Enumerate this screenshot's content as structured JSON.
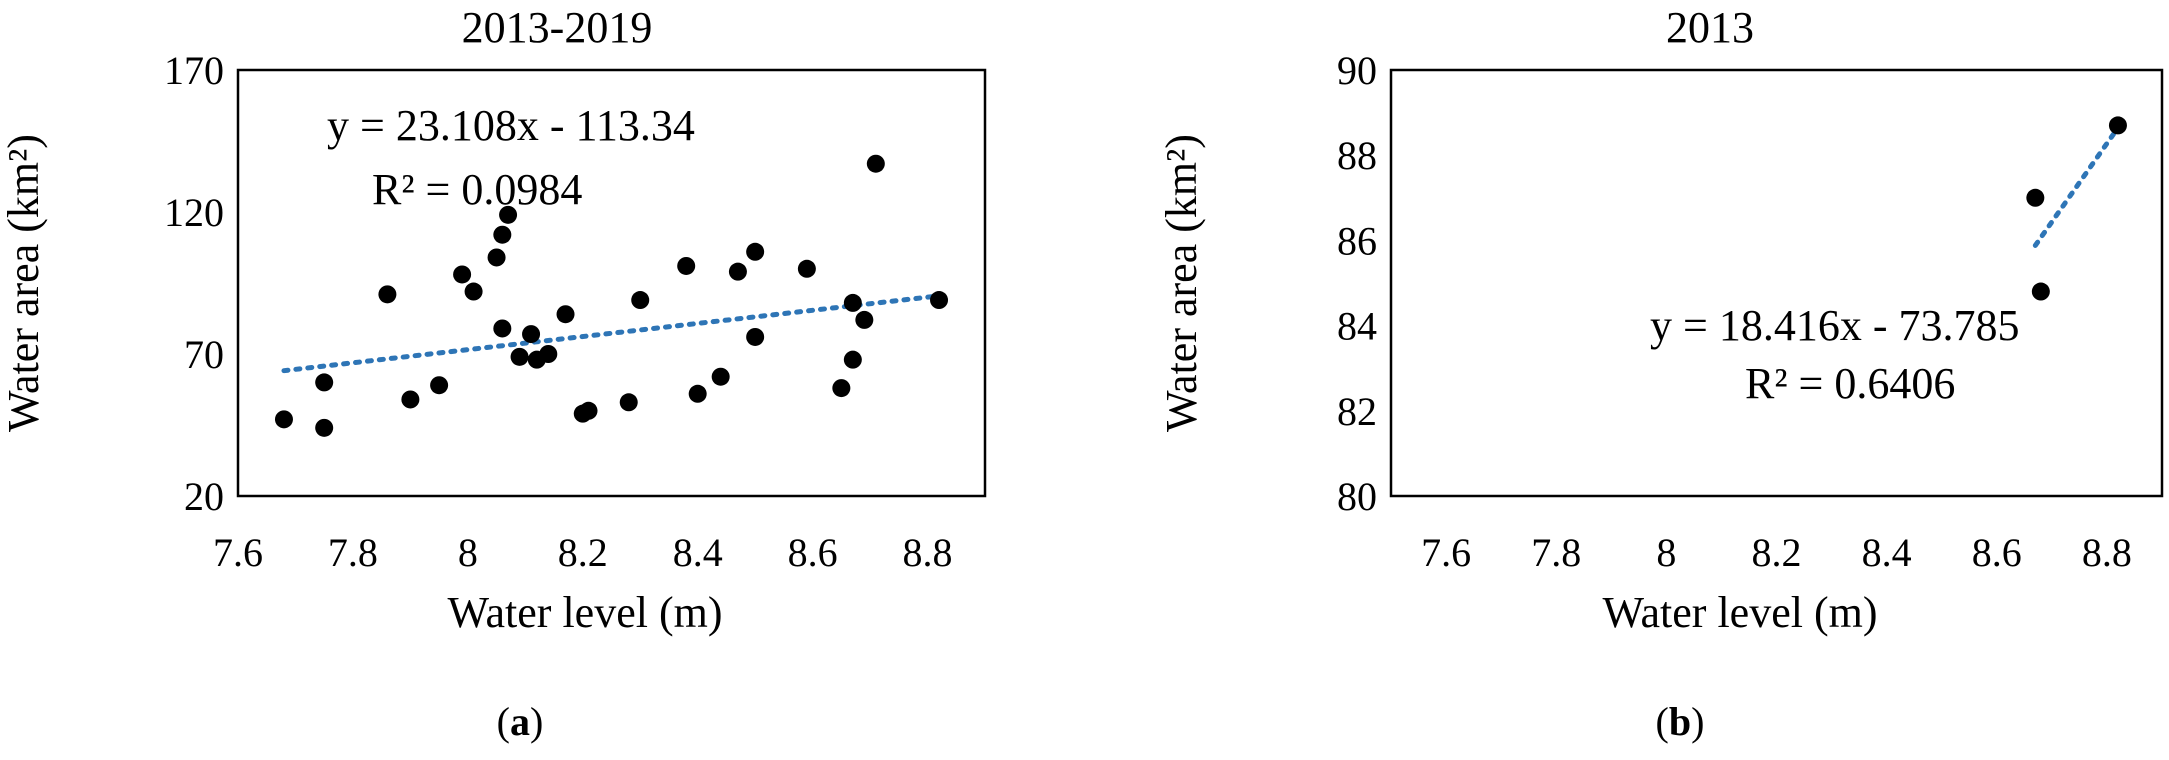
{
  "chart_data": [
    {
      "type": "scatter",
      "panel_label_open": "(",
      "panel_label_letter": "a",
      "panel_label_close": ")",
      "title": "2013-2019",
      "xlabel": "Water level (m)",
      "ylabel": "Water area (km²)",
      "xlim": [
        7.6,
        8.9
      ],
      "ylim": [
        20,
        170
      ],
      "xticks": [
        "7.6",
        "7.8",
        "8",
        "8.2",
        "8.4",
        "8.6",
        "8.8"
      ],
      "yticks": [
        "20",
        "70",
        "120",
        "170"
      ],
      "grid": false,
      "marker_color": "#000000",
      "trendline_color": "#2e75b6",
      "trendline": {
        "type": "linear",
        "slope": 23.108,
        "intercept": -113.34,
        "x_range": [
          7.68,
          8.82
        ]
      },
      "equation": "y = 23.108x - 113.34",
      "r_squared": "R² = 0.0984",
      "points": [
        {
          "x": 7.68,
          "y": 47
        },
        {
          "x": 7.75,
          "y": 44
        },
        {
          "x": 7.75,
          "y": 60
        },
        {
          "x": 7.86,
          "y": 91
        },
        {
          "x": 7.9,
          "y": 54
        },
        {
          "x": 7.95,
          "y": 59
        },
        {
          "x": 7.99,
          "y": 98
        },
        {
          "x": 8.01,
          "y": 92
        },
        {
          "x": 8.05,
          "y": 104
        },
        {
          "x": 8.06,
          "y": 112
        },
        {
          "x": 8.07,
          "y": 119
        },
        {
          "x": 8.06,
          "y": 79
        },
        {
          "x": 8.09,
          "y": 69
        },
        {
          "x": 8.11,
          "y": 77
        },
        {
          "x": 8.12,
          "y": 68
        },
        {
          "x": 8.14,
          "y": 70
        },
        {
          "x": 8.17,
          "y": 84
        },
        {
          "x": 8.2,
          "y": 49
        },
        {
          "x": 8.21,
          "y": 50
        },
        {
          "x": 8.28,
          "y": 53
        },
        {
          "x": 8.3,
          "y": 89
        },
        {
          "x": 8.38,
          "y": 101
        },
        {
          "x": 8.4,
          "y": 56
        },
        {
          "x": 8.44,
          "y": 62
        },
        {
          "x": 8.47,
          "y": 99
        },
        {
          "x": 8.5,
          "y": 106
        },
        {
          "x": 8.5,
          "y": 76
        },
        {
          "x": 8.59,
          "y": 100
        },
        {
          "x": 8.65,
          "y": 58
        },
        {
          "x": 8.67,
          "y": 68
        },
        {
          "x": 8.67,
          "y": 88
        },
        {
          "x": 8.69,
          "y": 82
        },
        {
          "x": 8.71,
          "y": 137
        },
        {
          "x": 8.82,
          "y": 89
        }
      ]
    },
    {
      "type": "scatter",
      "panel_label_open": "(",
      "panel_label_letter": "b",
      "panel_label_close": ")",
      "title": "2013",
      "xlabel": "Water level (m)",
      "ylabel": "Water area (km²)",
      "xlim": [
        7.5,
        8.9
      ],
      "ylim": [
        80,
        90
      ],
      "xticks": [
        "7.6",
        "7.8",
        "8",
        "8.2",
        "8.4",
        "8.6",
        "8.8"
      ],
      "yticks": [
        "80",
        "82",
        "84",
        "86",
        "88",
        "90"
      ],
      "grid": false,
      "marker_color": "#000000",
      "trendline_color": "#2e75b6",
      "trendline": {
        "type": "linear",
        "slope": 18.416,
        "intercept": -73.785,
        "x_range": [
          8.67,
          8.82
        ]
      },
      "equation": "y = 18.416x - 73.785",
      "r_squared": "R² = 0.6406",
      "points": [
        {
          "x": 8.67,
          "y": 87.0
        },
        {
          "x": 8.68,
          "y": 84.8
        },
        {
          "x": 8.82,
          "y": 88.7
        }
      ]
    }
  ]
}
